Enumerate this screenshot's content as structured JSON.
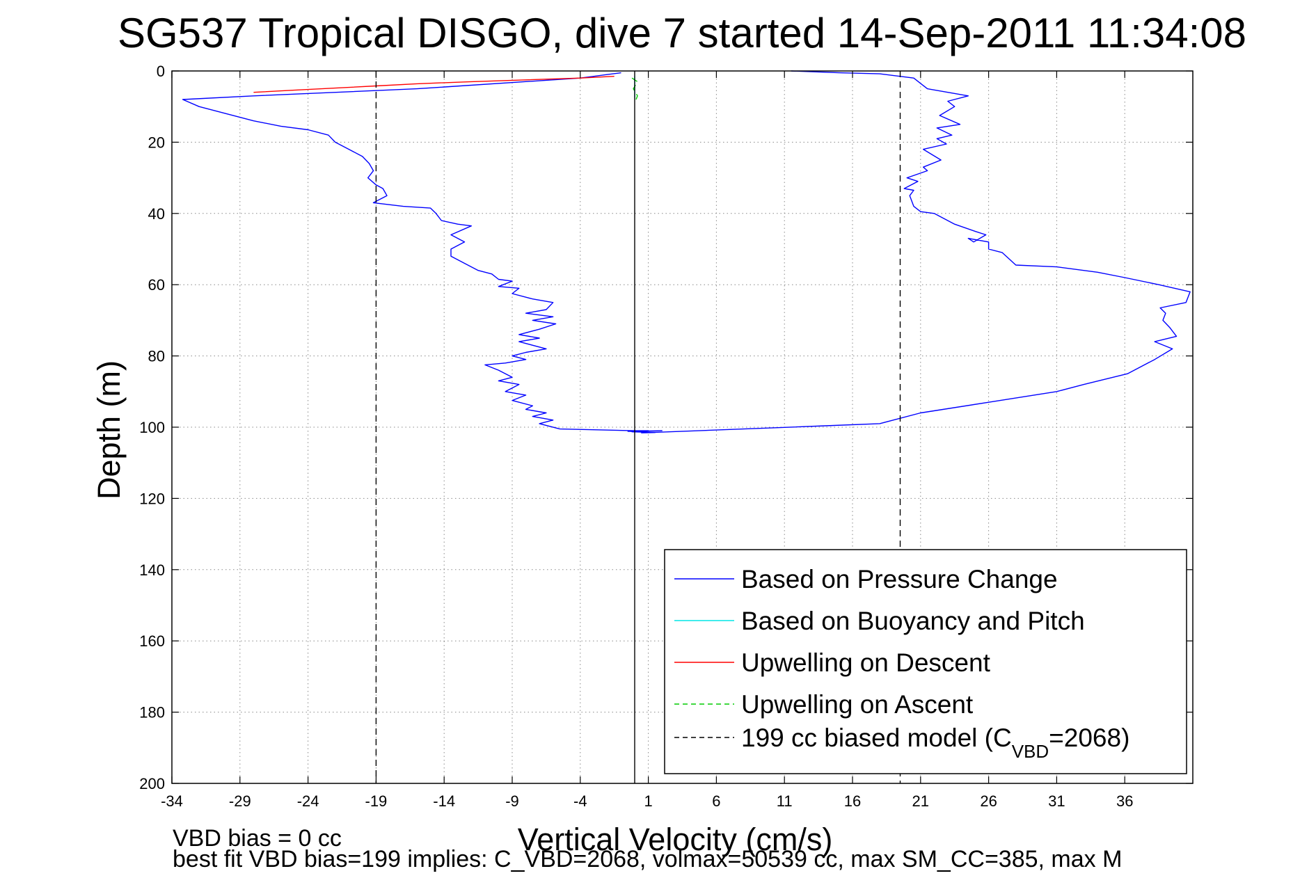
{
  "chart_data": {
    "type": "line",
    "title": "SG537 Tropical DISGO, dive 7 started 14-Sep-2011 11:34:08",
    "xlabel": "Vertical Velocity (cm/s)",
    "ylabel": "Depth (m)",
    "xlim": [
      -34,
      41
    ],
    "ylim": [
      200,
      0
    ],
    "y_reversed": true,
    "grid": true,
    "legend_position": "bottom-right",
    "xticks": [
      "-34",
      "-29",
      "-24",
      "-19",
      "-14",
      "-9",
      "-4",
      "1",
      "6",
      "11",
      "16",
      "21",
      "26",
      "31",
      "36"
    ],
    "xtick_values": [
      -34,
      -29,
      -24,
      -19,
      -14,
      -9,
      -4,
      1,
      6,
      11,
      16,
      21,
      26,
      31,
      36
    ],
    "yticks": [
      "0",
      "20",
      "40",
      "60",
      "80",
      "100",
      "120",
      "140",
      "160",
      "180",
      "200"
    ],
    "ytick_values": [
      0,
      20,
      40,
      60,
      80,
      100,
      120,
      140,
      160,
      180,
      200
    ],
    "series": [
      {
        "name": "Based on Pressure Change",
        "color": "#0000ff",
        "style": "solid",
        "points": [
          [
            -1,
            0.5
          ],
          [
            -2,
            1
          ],
          [
            -3,
            1.5
          ],
          [
            -4,
            2
          ],
          [
            -16,
            5
          ],
          [
            -28,
            7
          ],
          [
            -33.2,
            8
          ],
          [
            -32,
            10
          ],
          [
            -30,
            12
          ],
          [
            -28,
            14
          ],
          [
            -26,
            15.5
          ],
          [
            -24,
            16.5
          ],
          [
            -22.5,
            18
          ],
          [
            -22,
            20
          ],
          [
            -21,
            22
          ],
          [
            -20,
            24
          ],
          [
            -19.5,
            26
          ],
          [
            -19.2,
            28
          ],
          [
            -19.6,
            30
          ],
          [
            -19.0,
            32
          ],
          [
            -18.5,
            33
          ],
          [
            -18.2,
            35
          ],
          [
            -19.2,
            37
          ],
          [
            -17,
            38
          ],
          [
            -15,
            38.5
          ],
          [
            -14.6,
            40
          ],
          [
            -14.2,
            42
          ],
          [
            -13,
            43
          ],
          [
            -12,
            43.5
          ],
          [
            -13.5,
            46
          ],
          [
            -12.5,
            48
          ],
          [
            -13.5,
            50
          ],
          [
            -13.5,
            52
          ],
          [
            -12.5,
            54
          ],
          [
            -11.5,
            56
          ],
          [
            -10.5,
            57
          ],
          [
            -10,
            58.5
          ],
          [
            -9,
            59
          ],
          [
            -10,
            60.5
          ],
          [
            -8.5,
            61
          ],
          [
            -9,
            62.5
          ],
          [
            -7.5,
            64
          ],
          [
            -6,
            65
          ],
          [
            -6.5,
            67
          ],
          [
            -8,
            68
          ],
          [
            -6,
            69
          ],
          [
            -7.5,
            70
          ],
          [
            -5.8,
            71
          ],
          [
            -7,
            72.5
          ],
          [
            -8.5,
            74
          ],
          [
            -7,
            75
          ],
          [
            -8.5,
            76
          ],
          [
            -6.5,
            78
          ],
          [
            -8,
            79
          ],
          [
            -9,
            80
          ],
          [
            -8,
            81
          ],
          [
            -9.5,
            82
          ],
          [
            -11,
            82.5
          ],
          [
            -10,
            84
          ],
          [
            -9,
            86
          ],
          [
            -10,
            87
          ],
          [
            -8.5,
            88
          ],
          [
            -9.5,
            90
          ],
          [
            -8,
            91
          ],
          [
            -9,
            92.5
          ],
          [
            -7.5,
            94
          ],
          [
            -8,
            95
          ],
          [
            -6.5,
            96
          ],
          [
            -7.5,
            97
          ],
          [
            -6,
            98
          ],
          [
            -7,
            99
          ],
          [
            -5.5,
            100.5
          ],
          [
            0,
            101
          ],
          [
            1,
            101
          ],
          [
            -0.5,
            101.2
          ],
          [
            2,
            101
          ],
          [
            -0.2,
            101.3
          ],
          [
            1.5,
            101.5
          ],
          [
            0.5,
            101.6
          ],
          [
            8,
            100.5
          ],
          [
            14,
            99.6
          ],
          [
            18,
            99
          ],
          [
            21,
            96
          ],
          [
            26,
            93
          ],
          [
            31,
            90
          ],
          [
            33,
            88
          ],
          [
            36.2,
            85
          ],
          [
            38.2,
            81
          ],
          [
            39.5,
            78
          ],
          [
            38.2,
            76
          ],
          [
            39.8,
            74.5
          ],
          [
            39.3,
            72
          ],
          [
            38.8,
            70
          ],
          [
            39.0,
            68
          ],
          [
            38.6,
            66.5
          ],
          [
            40.5,
            65
          ],
          [
            40.8,
            62
          ],
          [
            38.5,
            60
          ],
          [
            36.0,
            58
          ],
          [
            34.0,
            56.5
          ],
          [
            31.0,
            55
          ],
          [
            28.0,
            54.5
          ],
          [
            27.0,
            51
          ],
          [
            26.0,
            50
          ],
          [
            26.0,
            48
          ],
          [
            24.5,
            47
          ],
          [
            24.9,
            48
          ],
          [
            25.8,
            46
          ],
          [
            25.0,
            45
          ],
          [
            23.5,
            43
          ],
          [
            22.5,
            41
          ],
          [
            22.0,
            40
          ],
          [
            21.0,
            39.5
          ],
          [
            20.5,
            38
          ],
          [
            20.2,
            35
          ],
          [
            20.5,
            33.5
          ],
          [
            19.8,
            33
          ],
          [
            20.8,
            31
          ],
          [
            20.0,
            30
          ],
          [
            21.5,
            28
          ],
          [
            21.2,
            27
          ],
          [
            22.5,
            25
          ],
          [
            21.2,
            22
          ],
          [
            22.9,
            20.5
          ],
          [
            22.2,
            19
          ],
          [
            23.3,
            18
          ],
          [
            22.2,
            16
          ],
          [
            23.9,
            15
          ],
          [
            22.4,
            12.5
          ],
          [
            23.5,
            10
          ],
          [
            23.0,
            8.5
          ],
          [
            24.5,
            7
          ],
          [
            23.0,
            6
          ],
          [
            21.5,
            5
          ],
          [
            21.0,
            3.5
          ],
          [
            20.5,
            2
          ],
          [
            18.0,
            0.8
          ],
          [
            15.0,
            0.5
          ],
          [
            11.5,
            0
          ]
        ]
      },
      {
        "name": "Based on Buoyancy and Pitch",
        "color": "#00e6e6",
        "style": "solid",
        "points": [
          [
            0.0,
            1.5
          ],
          [
            0.0,
            7.5
          ]
        ]
      },
      {
        "name": "Upwelling on Descent",
        "color": "#ff0000",
        "style": "solid",
        "points": [
          [
            -1.5,
            1.5
          ],
          [
            -4,
            2
          ],
          [
            -8,
            2.5
          ],
          [
            -12,
            3
          ],
          [
            -16,
            3.6
          ],
          [
            -19,
            4.2
          ],
          [
            -22,
            4.8
          ],
          [
            -25,
            5.4
          ],
          [
            -28,
            6
          ]
        ]
      },
      {
        "name": "Upwelling on Ascent",
        "color": "#00cc00",
        "style": "dashed",
        "points": [
          [
            -0.2,
            2
          ],
          [
            0.2,
            3
          ],
          [
            -0.1,
            5
          ],
          [
            0.2,
            7
          ],
          [
            0.1,
            8
          ]
        ]
      },
      {
        "name": "199 cc biased model (C_VBD=2068)",
        "color": "#000000",
        "style": "dashed",
        "segments": [
          [
            [
              -19,
              0
            ],
            [
              -19,
              200
            ]
          ],
          [
            [
              19.5,
              0
            ],
            [
              19.5,
              200
            ]
          ]
        ]
      },
      {
        "name": "zero reference",
        "color": "#000000",
        "style": "solid",
        "in_legend": false,
        "points": [
          [
            0,
            0
          ],
          [
            0,
            200
          ]
        ]
      }
    ],
    "legend": {
      "entries": [
        {
          "text": "Based on Pressure Change",
          "color": "#0000ff",
          "style": "solid"
        },
        {
          "text": "Based on Buoyancy and Pitch",
          "color": "#00e6e6",
          "style": "solid"
        },
        {
          "text": "Upwelling on Descent",
          "color": "#ff0000",
          "style": "solid"
        },
        {
          "text": "Upwelling on Ascent",
          "color": "#00cc00",
          "style": "dashed"
        },
        {
          "text": "199 cc biased model (C",
          "sub": "VBD",
          "tail": "=2068)",
          "color": "#000000",
          "style": "dashed"
        }
      ]
    },
    "annotations": [
      "VBD bias = 0 cc",
      "best fit VBD bias=199 implies: C_VBD=2068, volmax=50539 cc, max SM_CC=385, max M"
    ]
  }
}
